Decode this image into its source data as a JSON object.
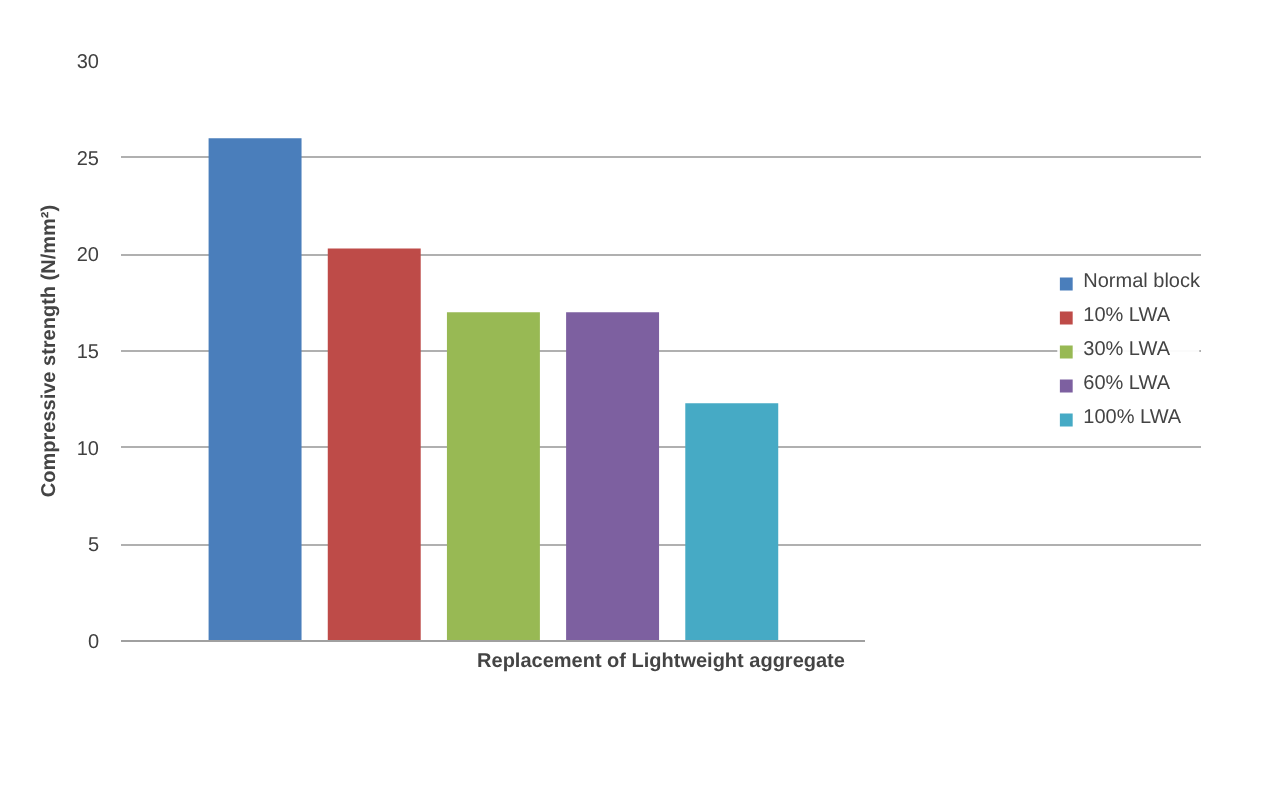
{
  "chart_data": {
    "type": "bar",
    "ylabel": "Compressive strength (N/mm²)",
    "xlabel": "Replacement of Lightweight aggregate",
    "categories": [
      null
    ],
    "series": [
      {
        "name": "Normal block",
        "color": "#4a7ebb",
        "values": [
          26.0
        ]
      },
      {
        "name": "10% LWA",
        "color": "#be4b48",
        "values": [
          20.3
        ]
      },
      {
        "name": "30% LWA",
        "color": "#98b954",
        "values": [
          17.0
        ]
      },
      {
        "name": "60% LWA",
        "color": "#7d60a0",
        "values": [
          17.0
        ]
      },
      {
        "name": "100% LWA",
        "color": "#46aac5",
        "values": [
          12.3
        ]
      }
    ],
    "ylim": [
      0,
      30
    ],
    "yticks": [
      0,
      5,
      10,
      15,
      20,
      25,
      30
    ],
    "grid": "y",
    "legend": "right"
  }
}
